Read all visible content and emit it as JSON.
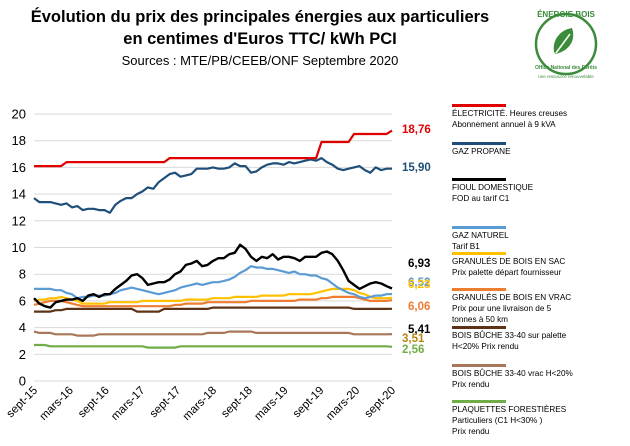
{
  "header": {
    "title_line1": "Évolution du prix des principales énergies aux particuliers",
    "title_line2": "en centimes d'Euros TTC/ kWh PCI",
    "sources": "Sources : MTE/PB/CEEB/ONF  Septembre 2020"
  },
  "logo": {
    "text_top": "ÉNERGIE BOIS",
    "text_bottom": "Office National des Forêts",
    "text_sub": "une ressource renouvelable",
    "color": "#3a8c3a"
  },
  "chart_data": {
    "type": "line",
    "title": "Évolution du prix des principales énergies aux particuliers en centimes d'Euros TTC/ kWh PCI",
    "ylim": [
      0,
      20
    ],
    "yticks": [
      0,
      2,
      4,
      6,
      8,
      10,
      12,
      14,
      16,
      18,
      20
    ],
    "grid": true,
    "x_tick_labels": [
      "sept-15",
      "mars-16",
      "sept-16",
      "mars-17",
      "sept-17",
      "mars-18",
      "sept-18",
      "mars-19",
      "sept-19",
      "mars-20",
      "sept-20"
    ],
    "legend_position": "right",
    "series": [
      {
        "name": "ÉLECTRICITÉ. Heures creuses\nAbonnement annuel à 9 kVA",
        "color": "#e00000",
        "end_label": "18,76",
        "end_color": "#e00000",
        "values": [
          16.1,
          16.1,
          16.1,
          16.1,
          16.1,
          16.1,
          16.4,
          16.4,
          16.4,
          16.4,
          16.4,
          16.4,
          16.4,
          16.4,
          16.4,
          16.4,
          16.4,
          16.4,
          16.4,
          16.4,
          16.4,
          16.4,
          16.4,
          16.4,
          16.4,
          16.7,
          16.7,
          16.7,
          16.7,
          16.7,
          16.7,
          16.7,
          16.7,
          16.7,
          16.7,
          16.7,
          16.7,
          16.7,
          16.7,
          16.7,
          16.7,
          16.7,
          16.7,
          16.7,
          16.7,
          16.7,
          16.7,
          16.7,
          16.7,
          16.7,
          16.7,
          16.7,
          16.7,
          17.9,
          17.9,
          17.9,
          17.9,
          17.9,
          17.9,
          18.5,
          18.5,
          18.5,
          18.5,
          18.5,
          18.5,
          18.5,
          18.76
        ]
      },
      {
        "name": "GAZ PROPANE",
        "color": "#1f4e79",
        "end_label": "15,90",
        "end_color": "#1f4e79",
        "values": [
          13.7,
          13.4,
          13.4,
          13.4,
          13.3,
          13.2,
          13.3,
          13.0,
          13.1,
          12.8,
          12.9,
          12.9,
          12.8,
          12.8,
          12.6,
          13.2,
          13.5,
          13.7,
          13.7,
          14.0,
          14.2,
          14.5,
          14.4,
          14.9,
          15.2,
          15.5,
          15.6,
          15.3,
          15.4,
          15.5,
          15.9,
          15.9,
          15.9,
          16.0,
          15.9,
          15.9,
          16.0,
          16.3,
          16.1,
          16.1,
          15.6,
          15.7,
          16.0,
          16.2,
          16.3,
          16.3,
          16.2,
          16.4,
          16.3,
          16.4,
          16.5,
          16.6,
          16.5,
          16.7,
          16.4,
          16.2,
          15.9,
          15.8,
          15.9,
          16.0,
          16.1,
          15.8,
          15.6,
          16.0,
          15.8,
          15.9,
          15.9
        ]
      },
      {
        "name": "FIOUL DOMESTIQUE\nFOD au tarif C1",
        "color": "#000000",
        "end_label": "6,93",
        "end_color": "#000000",
        "values": [
          6.2,
          5.8,
          5.6,
          5.5,
          5.9,
          6.0,
          6.1,
          6.1,
          6.2,
          6.0,
          6.4,
          6.5,
          6.3,
          6.5,
          6.5,
          6.9,
          7.2,
          7.5,
          7.9,
          8.0,
          7.7,
          7.2,
          7.3,
          7.4,
          7.4,
          7.6,
          8.0,
          8.2,
          8.7,
          8.8,
          9.0,
          8.6,
          8.7,
          9.0,
          9.2,
          9.2,
          9.5,
          9.6,
          10.2,
          9.9,
          9.3,
          9.0,
          9.3,
          9.2,
          9.5,
          9.1,
          9.3,
          9.3,
          9.2,
          9.0,
          9.3,
          9.3,
          9.3,
          9.6,
          9.7,
          9.5,
          9.0,
          8.3,
          7.5,
          7.2,
          6.9,
          7.1,
          7.3,
          7.4,
          7.3,
          7.1,
          6.93
        ]
      },
      {
        "name": "GAZ NATUREL\nTarif B1",
        "color": "#5b9bd5",
        "end_label": "6,52",
        "end_color": "#5b9bd5",
        "values": [
          6.9,
          6.9,
          6.9,
          6.9,
          6.8,
          6.8,
          6.6,
          6.5,
          6.2,
          6.3,
          6.3,
          6.4,
          6.4,
          6.4,
          6.5,
          6.6,
          6.8,
          6.9,
          7.0,
          6.9,
          6.8,
          6.7,
          6.6,
          6.5,
          6.6,
          6.7,
          6.8,
          7.0,
          7.1,
          7.2,
          7.3,
          7.2,
          7.3,
          7.4,
          7.4,
          7.5,
          7.6,
          7.8,
          8.1,
          8.3,
          8.6,
          8.5,
          8.5,
          8.4,
          8.4,
          8.3,
          8.2,
          8.1,
          8.2,
          8.0,
          8.0,
          7.9,
          7.9,
          7.7,
          7.6,
          7.3,
          7.0,
          6.8,
          6.6,
          6.5,
          6.3,
          6.2,
          6.3,
          6.4,
          6.4,
          6.5,
          6.52
        ]
      },
      {
        "name": "GRANULÉS DE BOIS EN SAC\nPrix palette départ fournisseur",
        "color": "#ffc000",
        "end_label": "6,23",
        "end_color": "#ffc000",
        "values": [
          6.0,
          6.1,
          6.1,
          6.2,
          6.2,
          6.3,
          6.2,
          6.1,
          6.0,
          5.8,
          5.8,
          5.8,
          5.8,
          5.8,
          5.9,
          5.9,
          5.9,
          5.9,
          5.9,
          5.9,
          6.0,
          6.0,
          6.0,
          6.0,
          6.0,
          6.0,
          6.0,
          6.0,
          6.1,
          6.1,
          6.1,
          6.1,
          6.1,
          6.2,
          6.2,
          6.2,
          6.2,
          6.3,
          6.3,
          6.3,
          6.3,
          6.3,
          6.4,
          6.4,
          6.4,
          6.4,
          6.4,
          6.5,
          6.5,
          6.5,
          6.5,
          6.5,
          6.6,
          6.7,
          6.8,
          6.9,
          6.9,
          6.9,
          6.9,
          6.8,
          6.6,
          6.5,
          6.3,
          6.2,
          6.2,
          6.2,
          6.23
        ]
      },
      {
        "name": "GRANULÉS DE BOIS EN VRAC\nPrix pour une livraison de 5\ntonnes à 50 km",
        "color": "#ed7d31",
        "end_label": "6,06",
        "end_color": "#ed7d31",
        "values": [
          5.7,
          5.8,
          5.9,
          6.0,
          6.0,
          6.0,
          5.9,
          5.8,
          5.7,
          5.6,
          5.6,
          5.6,
          5.6,
          5.6,
          5.6,
          5.6,
          5.6,
          5.6,
          5.6,
          5.6,
          5.6,
          5.6,
          5.6,
          5.6,
          5.6,
          5.6,
          5.7,
          5.7,
          5.8,
          5.8,
          5.8,
          5.8,
          5.9,
          5.9,
          5.9,
          5.9,
          5.9,
          5.9,
          5.9,
          5.9,
          6.0,
          6.0,
          6.0,
          6.0,
          6.0,
          6.0,
          6.0,
          6.0,
          6.0,
          6.1,
          6.1,
          6.1,
          6.1,
          6.2,
          6.2,
          6.3,
          6.3,
          6.3,
          6.3,
          6.3,
          6.2,
          6.1,
          6.0,
          6.0,
          6.0,
          6.0,
          6.06
        ]
      },
      {
        "name": "BOIS BÛCHE 33-40 sur palette\nH<20%  Prix rendu",
        "color": "#5c3317",
        "end_label": "5,41",
        "end_color": "#000000",
        "values": [
          5.2,
          5.2,
          5.2,
          5.2,
          5.3,
          5.3,
          5.4,
          5.4,
          5.4,
          5.4,
          5.4,
          5.4,
          5.4,
          5.4,
          5.4,
          5.4,
          5.4,
          5.4,
          5.4,
          5.2,
          5.2,
          5.2,
          5.2,
          5.2,
          5.4,
          5.4,
          5.4,
          5.4,
          5.4,
          5.4,
          5.4,
          5.4,
          5.4,
          5.5,
          5.5,
          5.5,
          5.5,
          5.5,
          5.5,
          5.5,
          5.5,
          5.5,
          5.5,
          5.5,
          5.5,
          5.5,
          5.5,
          5.5,
          5.5,
          5.5,
          5.5,
          5.5,
          5.5,
          5.5,
          5.5,
          5.5,
          5.5,
          5.5,
          5.5,
          5.4,
          5.4,
          5.4,
          5.4,
          5.4,
          5.4,
          5.4,
          5.41
        ]
      },
      {
        "name": "BOIS BÛCHE 33-40 vrac H<20%\nPrix rendu",
        "color": "#a9785a",
        "end_label": "3,51",
        "end_color": "#b8860b",
        "values": [
          3.7,
          3.6,
          3.6,
          3.6,
          3.5,
          3.5,
          3.5,
          3.5,
          3.4,
          3.4,
          3.4,
          3.4,
          3.5,
          3.5,
          3.5,
          3.5,
          3.5,
          3.5,
          3.5,
          3.5,
          3.5,
          3.5,
          3.5,
          3.5,
          3.5,
          3.5,
          3.5,
          3.5,
          3.5,
          3.5,
          3.5,
          3.5,
          3.6,
          3.6,
          3.6,
          3.6,
          3.7,
          3.7,
          3.7,
          3.7,
          3.7,
          3.6,
          3.6,
          3.6,
          3.6,
          3.6,
          3.6,
          3.6,
          3.6,
          3.6,
          3.6,
          3.6,
          3.6,
          3.6,
          3.6,
          3.6,
          3.6,
          3.6,
          3.6,
          3.5,
          3.5,
          3.5,
          3.5,
          3.5,
          3.5,
          3.5,
          3.51
        ]
      },
      {
        "name": "PLAQUETTES FORESTIÈRES\nParticuliers (C1 H<30% )\n Prix rendu",
        "color": "#70ad47",
        "end_label": "2,56",
        "end_color": "#70ad47",
        "values": [
          2.7,
          2.7,
          2.7,
          2.6,
          2.6,
          2.6,
          2.6,
          2.6,
          2.6,
          2.6,
          2.6,
          2.6,
          2.6,
          2.6,
          2.6,
          2.6,
          2.6,
          2.6,
          2.6,
          2.6,
          2.6,
          2.5,
          2.5,
          2.5,
          2.5,
          2.5,
          2.5,
          2.6,
          2.6,
          2.6,
          2.6,
          2.6,
          2.6,
          2.6,
          2.6,
          2.6,
          2.6,
          2.6,
          2.6,
          2.6,
          2.6,
          2.6,
          2.6,
          2.6,
          2.6,
          2.6,
          2.6,
          2.6,
          2.6,
          2.6,
          2.6,
          2.6,
          2.6,
          2.6,
          2.6,
          2.6,
          2.6,
          2.6,
          2.6,
          2.6,
          2.6,
          2.6,
          2.6,
          2.6,
          2.6,
          2.6,
          2.56
        ]
      }
    ]
  }
}
